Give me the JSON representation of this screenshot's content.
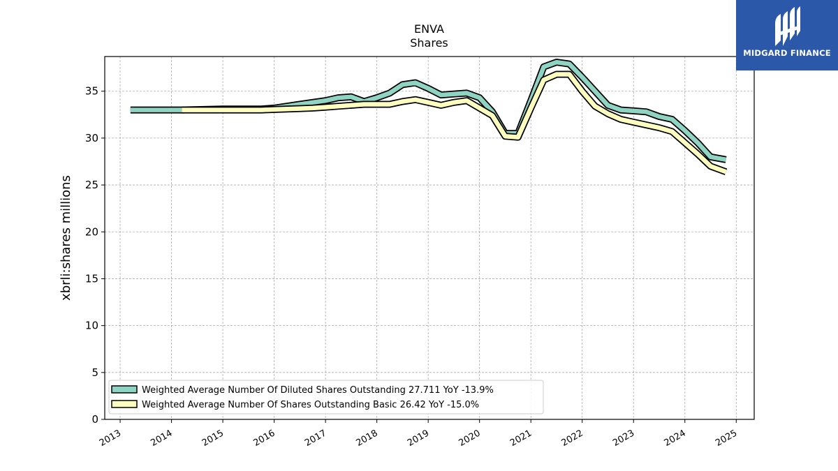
{
  "chart_data": {
    "type": "line",
    "title": "ENVA",
    "subtitle": "Shares",
    "ylabel": "xbrli:shares millions",
    "xlabel": "",
    "ylim": [
      0,
      38.7
    ],
    "xlim": [
      2012.7,
      2025.35
    ],
    "x_ticks": [
      "2013",
      "2014",
      "2015",
      "2016",
      "2017",
      "2018",
      "2019",
      "2020",
      "2021",
      "2022",
      "2023",
      "2024",
      "2025"
    ],
    "y_ticks": [
      "0",
      "5",
      "10",
      "15",
      "20",
      "25",
      "30",
      "35"
    ],
    "grid": true,
    "legend_position": "lower-left",
    "series": [
      {
        "name": "Weighted Average Number Of Diluted Shares Outstanding",
        "legend_label": "Weighted Average Number Of Diluted Shares Outstanding  27.711 YoY -13.9%",
        "color": "#8fd3c3",
        "x": [
          2013.2,
          2014.2,
          2015.0,
          2015.75,
          2016.0,
          2016.25,
          2016.5,
          2016.75,
          2017.0,
          2017.25,
          2017.5,
          2017.75,
          2018.0,
          2018.25,
          2018.5,
          2018.75,
          2019.0,
          2019.25,
          2019.5,
          2019.75,
          2020.0,
          2020.25,
          2020.5,
          2020.75,
          2021.0,
          2021.25,
          2021.5,
          2021.75,
          2022.0,
          2022.25,
          2022.5,
          2022.75,
          2023.0,
          2023.25,
          2023.5,
          2023.75,
          2024.0,
          2024.25,
          2024.5,
          2024.8
        ],
        "y": [
          33.0,
          33.0,
          33.1,
          33.1,
          33.2,
          33.4,
          33.6,
          33.8,
          34.0,
          34.3,
          34.4,
          33.9,
          34.3,
          34.8,
          35.7,
          35.9,
          35.3,
          34.6,
          34.7,
          34.8,
          34.3,
          32.8,
          30.5,
          30.5,
          34.0,
          37.6,
          38.1,
          37.9,
          36.5,
          35.0,
          33.5,
          33.0,
          32.9,
          32.8,
          32.3,
          32.0,
          30.8,
          29.5,
          28.0,
          27.7
        ]
      },
      {
        "name": "Weighted Average Number Of Shares Outstanding Basic",
        "legend_label": "Weighted Average Number Of Shares Outstanding Basic  26.42 YoY -15.0%",
        "color": "#ffffc0",
        "x": [
          2014.2,
          2015.0,
          2015.75,
          2016.0,
          2016.25,
          2016.5,
          2016.75,
          2017.0,
          2017.25,
          2017.5,
          2017.75,
          2018.0,
          2018.25,
          2018.5,
          2018.75,
          2019.0,
          2019.25,
          2019.5,
          2019.75,
          2020.0,
          2020.25,
          2020.5,
          2020.75,
          2021.0,
          2021.25,
          2021.5,
          2021.75,
          2022.0,
          2022.25,
          2022.5,
          2022.75,
          2023.0,
          2023.25,
          2023.5,
          2023.75,
          2024.0,
          2024.25,
          2024.5,
          2024.8
        ],
        "y": [
          33.0,
          33.0,
          33.0,
          33.05,
          33.1,
          33.15,
          33.2,
          33.3,
          33.4,
          33.5,
          33.6,
          33.6,
          33.6,
          33.9,
          34.1,
          33.8,
          33.5,
          33.8,
          34.0,
          33.2,
          32.4,
          30.2,
          30.1,
          33.2,
          36.2,
          36.8,
          36.8,
          35.0,
          33.4,
          32.6,
          32.0,
          31.7,
          31.4,
          31.1,
          30.7,
          29.5,
          28.3,
          27.0,
          26.4
        ]
      }
    ]
  },
  "logo": {
    "text": "MIDGARD FINANCE",
    "color": "#2b58a8"
  }
}
